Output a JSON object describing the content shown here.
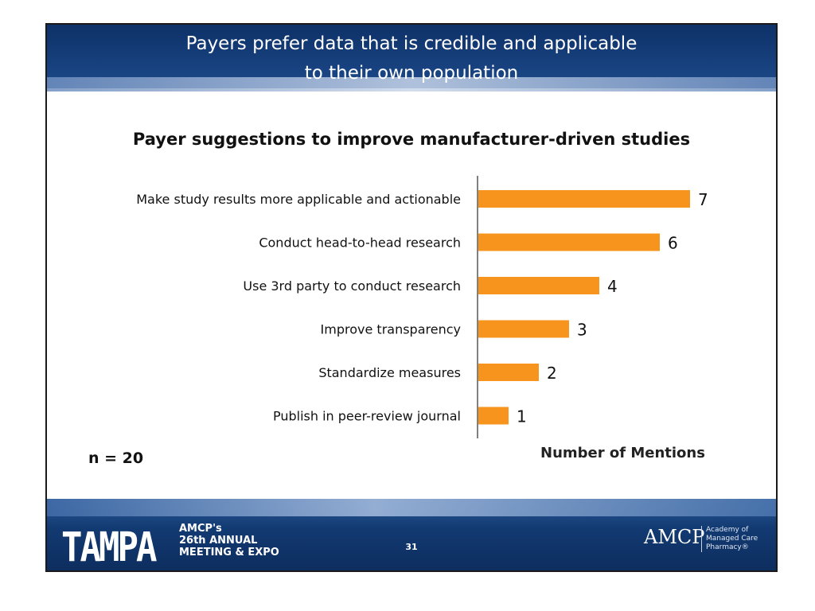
{
  "header": {
    "title_line1": "Payers prefer data that is credible and applicable",
    "title_line2": "to their own population"
  },
  "chart_data": {
    "type": "bar",
    "orientation": "horizontal",
    "title": "Payer suggestions to improve manufacturer-driven studies",
    "categories": [
      "Make study results more applicable and actionable",
      "Conduct head-to-head research",
      "Use 3rd party to conduct research",
      "Improve transparency",
      "Standardize measures",
      "Publish in peer-review journal"
    ],
    "values": [
      7,
      6,
      4,
      3,
      2,
      1
    ],
    "xlabel": "Number of Mentions",
    "ylabel": "",
    "xlim": [
      0,
      8
    ],
    "bar_color": "#f7941d",
    "grid": false,
    "data_labels": true
  },
  "note": "n = 20",
  "footer": {
    "logo_text": "TAMPA",
    "event_line1": "AMCP's",
    "event_line2": "26th ANNUAL",
    "event_line3": "MEETING & EXPO",
    "page_number": "31",
    "org_logo": "AMCP",
    "org_line1": "Academy of",
    "org_line2": "Managed Care",
    "org_line3": "Pharmacy®"
  }
}
